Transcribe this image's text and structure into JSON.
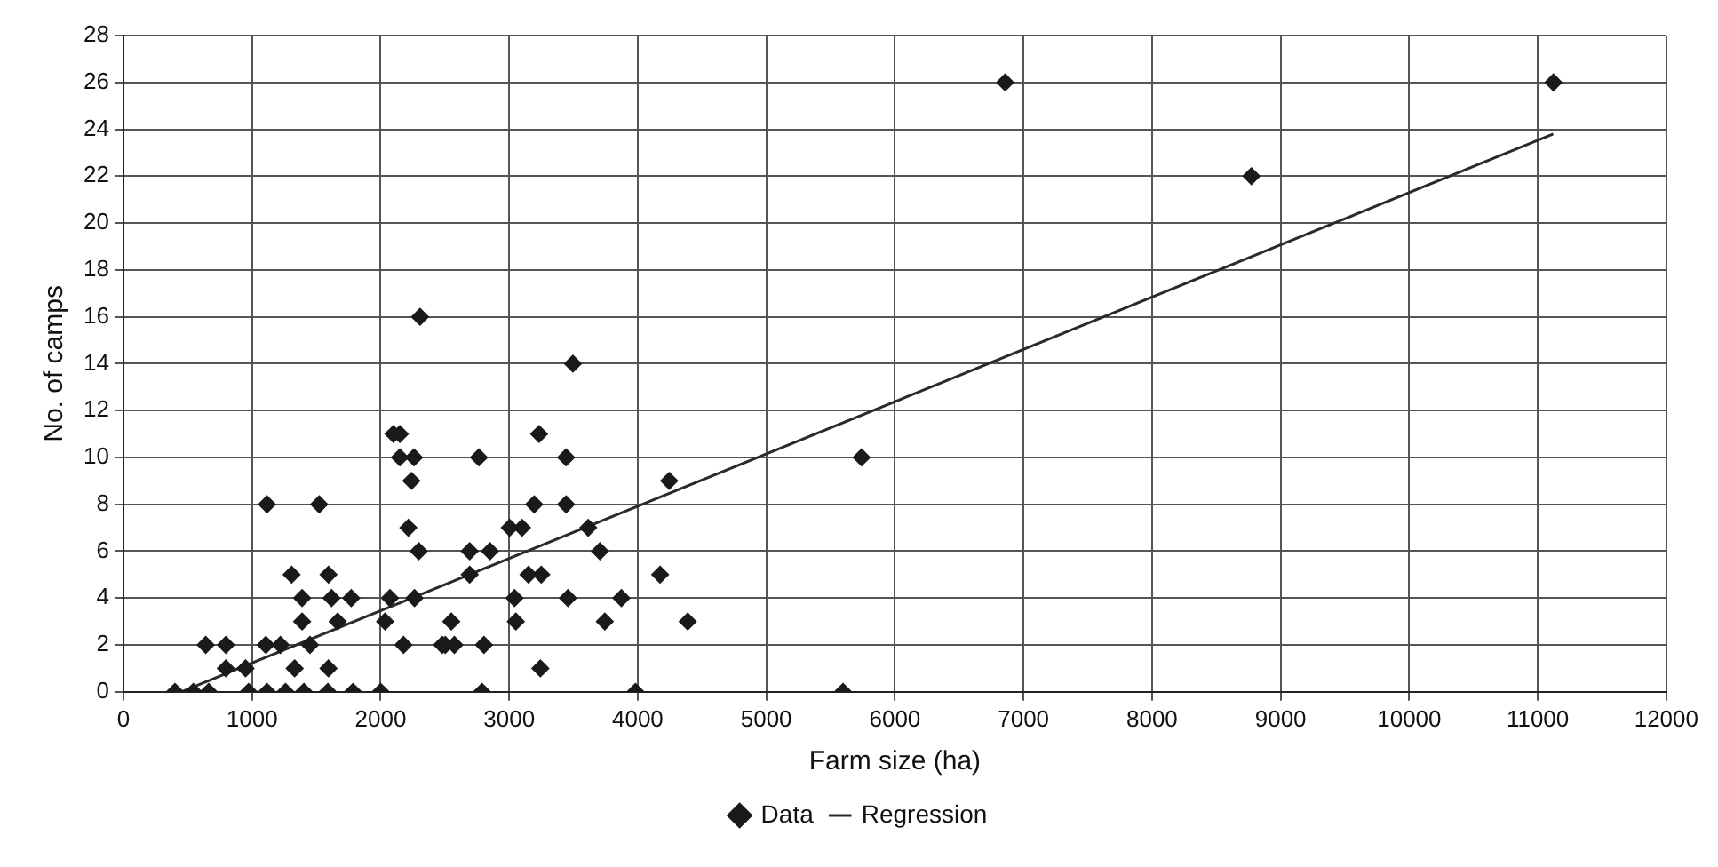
{
  "chart_data": {
    "type": "scatter",
    "xlabel": "Farm size (ha)",
    "ylabel": "No. of camps",
    "xlim": [
      0,
      12000
    ],
    "xticks": [
      0,
      1000,
      2000,
      3000,
      4000,
      5000,
      6000,
      7000,
      8000,
      9000,
      10000,
      11000,
      12000
    ],
    "ylim": [
      0,
      28
    ],
    "yticks": [
      0,
      2,
      4,
      6,
      8,
      10,
      12,
      14,
      16,
      18,
      20,
      22,
      24,
      26,
      28
    ],
    "grid": true,
    "legend": "bottom",
    "series": [
      {
        "name": "Data",
        "type": "scatter",
        "color": "#1a1a1a",
        "marker": "diamond",
        "x": [
          2307,
          2100,
          2150,
          2150,
          2260,
          2240,
          2216,
          2297,
          1117,
          1523,
          1308,
          1595,
          1390,
          1619,
          1772,
          2073,
          2264,
          1390,
          1666,
          2035,
          640,
          797,
          1108,
          1222,
          1451,
          2178,
          2503,
          797,
          950,
          1332,
          1595,
          401,
          544,
          663,
          974,
          1117,
          1261,
          1404,
          1590,
          1786,
          2001,
          3496,
          3233,
          2765,
          3443,
          4245,
          3195,
          3443,
          3004,
          3100,
          3615,
          2693,
          2851,
          3706,
          2693,
          3150,
          3250,
          4174,
          3042,
          3457,
          3873,
          2550,
          3052,
          3744,
          4389,
          2479,
          2574,
          2804,
          3243,
          2789,
          3983,
          6858,
          11122,
          8773,
          5741,
          5597
        ],
        "values": [
          16,
          11,
          11,
          10,
          10,
          9,
          7,
          6,
          8,
          8,
          5,
          5,
          4,
          4,
          4,
          4,
          4,
          3,
          3,
          3,
          2,
          2,
          2,
          2,
          2,
          2,
          2,
          1,
          1,
          1,
          1,
          0,
          0,
          0,
          0,
          0,
          0,
          0,
          0,
          0,
          0,
          14,
          11,
          10,
          10,
          9,
          8,
          8,
          7,
          7,
          7,
          6,
          6,
          6,
          5,
          5,
          5,
          5,
          4,
          4,
          4,
          3,
          3,
          3,
          3,
          2,
          2,
          2,
          1,
          0,
          0,
          26,
          26,
          22,
          10,
          0
        ]
      },
      {
        "name": "Regression",
        "type": "line",
        "color": "#2a2a2a",
        "marker": "none",
        "line_style": "solid",
        "x": [
          450,
          11120
        ],
        "values": [
          0,
          23.8
        ]
      }
    ]
  }
}
